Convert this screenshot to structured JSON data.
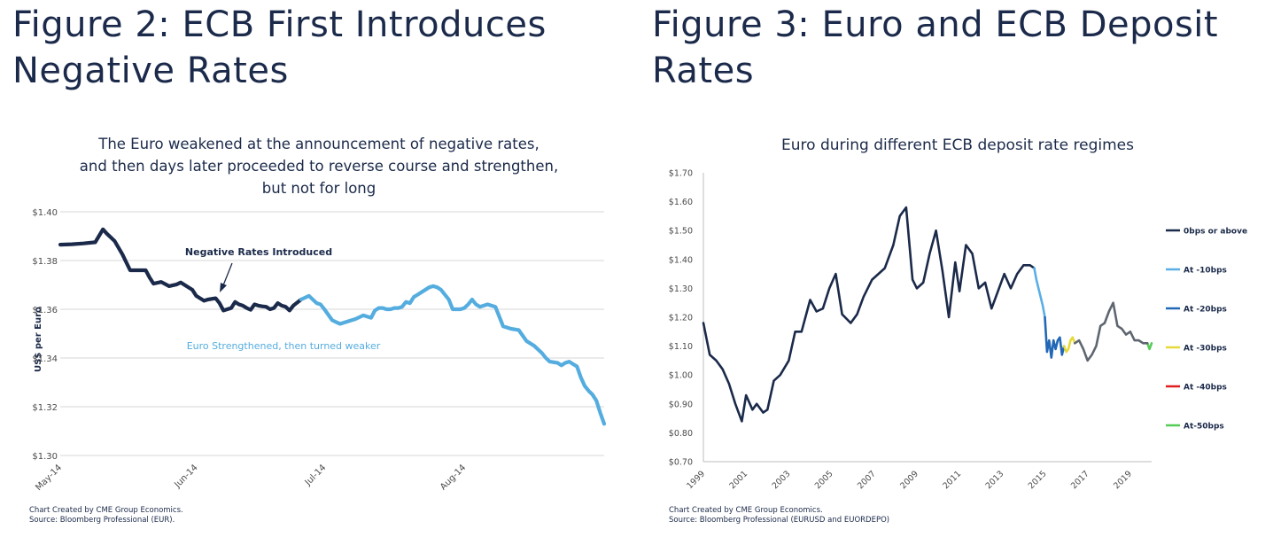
{
  "figures": [
    {
      "title": "Figure 2: ECB First Introduces Negative Rates",
      "source_line1": "Chart Created by CME Group Economics.",
      "source_line2": "Source: Bloomberg Professional (EUR)."
    },
    {
      "title": "Figure 3: Euro and ECB Deposit Rates",
      "source_line1": "Chart Created by CME Group Economics.",
      "source_line2": "Source: Bloomberg Professional (EURUSD and EUORDEPO)"
    }
  ],
  "chart_data": [
    {
      "type": "line",
      "title_lines": [
        "The Euro weakened at the announcement of negative rates,",
        "and then days later proceeded to reverse course and strengthen,",
        "but not for long"
      ],
      "ylabel": "US$ per Euro",
      "ylim": [
        1.3,
        1.4
      ],
      "yticks": [
        1.3,
        1.32,
        1.34,
        1.36,
        1.38,
        1.4
      ],
      "ytick_labels": [
        "$1.30",
        "$1.32",
        "$1.34",
        "$1.36",
        "$1.38",
        "$1.40"
      ],
      "xlim": [
        0,
        140
      ],
      "xticks": [
        0,
        35,
        68,
        104
      ],
      "xtick_labels": [
        "May-14",
        "Jun-14",
        "Jul-14",
        "Aug-14"
      ],
      "grid": true,
      "series": [
        {
          "color": "#1b2a4a",
          "x": [
            0,
            3,
            6,
            9,
            11,
            12,
            14,
            16,
            18,
            20,
            22,
            23,
            24,
            26,
            28,
            30,
            31,
            32,
            34,
            35,
            37,
            38,
            40,
            41,
            42,
            44,
            45,
            46,
            47,
            48,
            49,
            50,
            51,
            52,
            53,
            54,
            55,
            56,
            57,
            58,
            59,
            60,
            62
          ],
          "y": [
            1.3865,
            1.3867,
            1.387,
            1.3875,
            1.3928,
            1.391,
            1.388,
            1.3825,
            1.376,
            1.376,
            1.376,
            1.373,
            1.3705,
            1.3712,
            1.3695,
            1.3702,
            1.371,
            1.37,
            1.368,
            1.3655,
            1.3635,
            1.364,
            1.3645,
            1.3625,
            1.3595,
            1.3605,
            1.363,
            1.362,
            1.3615,
            1.3605,
            1.3598,
            1.362,
            1.3615,
            1.3612,
            1.361,
            1.36,
            1.3605,
            1.3625,
            1.3615,
            1.361,
            1.3595,
            1.3615,
            1.364
          ]
        },
        {
          "color": "#55addf",
          "x": [
            62,
            64,
            65,
            66,
            67,
            68,
            70,
            72,
            74,
            76,
            78,
            80,
            81,
            82,
            83,
            84,
            85,
            86,
            87,
            88,
            89,
            90,
            91,
            92,
            93,
            95,
            96,
            97,
            98,
            100,
            101,
            102,
            103,
            104,
            105,
            106,
            107,
            108,
            110,
            112,
            114,
            116,
            118,
            120,
            122,
            124,
            125,
            126,
            128,
            129,
            130,
            131,
            132,
            133,
            134,
            135,
            136,
            137,
            138,
            139,
            140
          ],
          "y": [
            1.364,
            1.3655,
            1.364,
            1.3625,
            1.362,
            1.36,
            1.3555,
            1.354,
            1.355,
            1.356,
            1.3575,
            1.3565,
            1.3595,
            1.3605,
            1.3605,
            1.36,
            1.36,
            1.3605,
            1.3605,
            1.361,
            1.363,
            1.3625,
            1.365,
            1.366,
            1.367,
            1.369,
            1.3695,
            1.369,
            1.368,
            1.364,
            1.36,
            1.36,
            1.36,
            1.3605,
            1.362,
            1.364,
            1.362,
            1.361,
            1.362,
            1.361,
            1.353,
            1.352,
            1.3515,
            1.347,
            1.345,
            1.342,
            1.34,
            1.3385,
            1.338,
            1.337,
            1.338,
            1.3385,
            1.3375,
            1.3365,
            1.332,
            1.3285,
            1.3265,
            1.325,
            1.3225,
            1.3175,
            1.313
          ]
        }
      ],
      "annotations": [
        {
          "text": "Negative Rates Introduced",
          "color": "#1b2a4a",
          "arrow_to": [
            51,
            1.3665
          ]
        },
        {
          "text": "Euro Strengthened, then turned weaker",
          "color": "#55addf"
        }
      ]
    },
    {
      "type": "line",
      "title": "Euro during different ECB deposit rate regimes",
      "ylim": [
        0.7,
        1.7
      ],
      "yticks": [
        0.7,
        0.8,
        0.9,
        1.0,
        1.1,
        1.2,
        1.3,
        1.4,
        1.5,
        1.6,
        1.7
      ],
      "ytick_labels": [
        "$0.70",
        "$0.80",
        "$0.90",
        "$1.00",
        "$1.10",
        "$1.20",
        "$1.30",
        "$1.40",
        "$1.50",
        "$1.60",
        "$1.70"
      ],
      "xlim": [
        1999.0,
        2020.0
      ],
      "xticks": [
        1999,
        2001,
        2003,
        2005,
        2007,
        2009,
        2011,
        2013,
        2015,
        2017,
        2019
      ],
      "xtick_labels": [
        "1999",
        "2001",
        "2003",
        "2005",
        "2007",
        "2009",
        "2011",
        "2013",
        "2015",
        "2017",
        "2019"
      ],
      "grid": false,
      "legend_position": "right",
      "series": [
        {
          "name": "0bps or above",
          "color": "#1b2a4a",
          "x": [
            1999.0,
            1999.3,
            1999.6,
            1999.9,
            2000.2,
            2000.5,
            2000.8,
            2001.0,
            2001.3,
            2001.5,
            2001.8,
            2002.0,
            2002.3,
            2002.6,
            2003.0,
            2003.3,
            2003.6,
            2004.0,
            2004.3,
            2004.6,
            2004.9,
            2005.2,
            2005.5,
            2005.9,
            2006.2,
            2006.5,
            2006.9,
            2007.2,
            2007.5,
            2007.9,
            2008.2,
            2008.5,
            2008.8,
            2009.0,
            2009.3,
            2009.6,
            2009.9,
            2010.2,
            2010.5,
            2010.8,
            2011.0,
            2011.3,
            2011.6,
            2011.9,
            2012.2,
            2012.5,
            2012.8,
            2013.1,
            2013.4,
            2013.7,
            2014.0,
            2014.3,
            2014.5
          ],
          "y": [
            1.18,
            1.07,
            1.05,
            1.02,
            0.97,
            0.9,
            0.84,
            0.93,
            0.88,
            0.9,
            0.87,
            0.88,
            0.98,
            1.0,
            1.05,
            1.15,
            1.15,
            1.26,
            1.22,
            1.23,
            1.3,
            1.35,
            1.21,
            1.18,
            1.21,
            1.27,
            1.33,
            1.35,
            1.37,
            1.45,
            1.55,
            1.58,
            1.33,
            1.3,
            1.32,
            1.42,
            1.5,
            1.36,
            1.2,
            1.39,
            1.29,
            1.45,
            1.42,
            1.3,
            1.32,
            1.23,
            1.29,
            1.35,
            1.3,
            1.35,
            1.38,
            1.38,
            1.37
          ]
        },
        {
          "name": "At -10bps",
          "color": "#5aaee6",
          "x": [
            2014.5,
            2014.6,
            2014.7,
            2014.8,
            2014.9,
            2015.0
          ],
          "y": [
            1.37,
            1.33,
            1.3,
            1.27,
            1.24,
            1.2
          ]
        },
        {
          "name": "At -20bps",
          "color": "#2268b6",
          "x": [
            2015.0,
            2015.1,
            2015.2,
            2015.3,
            2015.4,
            2015.5,
            2015.6,
            2015.7,
            2015.8,
            2015.9
          ],
          "y": [
            1.2,
            1.08,
            1.12,
            1.06,
            1.12,
            1.09,
            1.12,
            1.13,
            1.07,
            1.1
          ]
        },
        {
          "name": "At -30bps",
          "color": "#e6d93a",
          "x": [
            2015.9,
            2016.0,
            2016.1,
            2016.2,
            2016.3,
            2016.4
          ],
          "y": [
            1.1,
            1.08,
            1.09,
            1.12,
            1.13,
            1.11
          ]
        },
        {
          "name": "At -40bps",
          "color": "#e02020",
          "x": [],
          "y": []
        },
        {
          "name": "At-50bps",
          "color": "#55cc55",
          "x": [
            2019.8,
            2019.9,
            2020.0
          ],
          "y": [
            1.11,
            1.09,
            1.11
          ]
        },
        {
          "name": "",
          "color": "#5e6670",
          "x": [
            2016.4,
            2016.6,
            2016.8,
            2017.0,
            2017.2,
            2017.4,
            2017.6,
            2017.8,
            2018.0,
            2018.2,
            2018.4,
            2018.6,
            2018.8,
            2019.0,
            2019.2,
            2019.4,
            2019.6,
            2019.8
          ],
          "y": [
            1.11,
            1.12,
            1.09,
            1.05,
            1.07,
            1.1,
            1.17,
            1.18,
            1.22,
            1.25,
            1.17,
            1.16,
            1.14,
            1.15,
            1.12,
            1.12,
            1.11,
            1.11
          ]
        }
      ]
    }
  ]
}
